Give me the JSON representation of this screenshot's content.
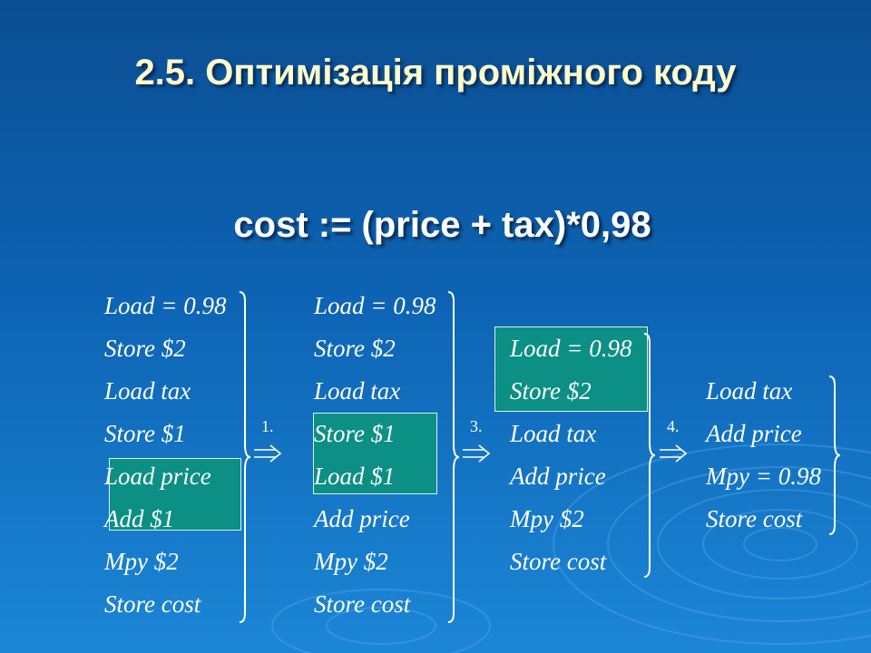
{
  "slide": {
    "title": "2.5. Оптимізація проміжного коду",
    "formula": "cost := (price + tax)*0,98"
  },
  "columns": [
    {
      "lines": [
        "Load = 0.98",
        "Store $2",
        "Load tax",
        "Store $1",
        "Load price",
        "Add $1",
        "Mpy $2",
        "Store cost"
      ]
    },
    {
      "lines": [
        "Load = 0.98",
        "Store $2",
        "Load tax",
        "Store $1",
        "Load $1",
        "Add price",
        "Mpy $2",
        "Store cost"
      ]
    },
    {
      "lines": [
        "Load = 0.98",
        "Store $2",
        "Load tax",
        "Add price",
        "Mpy $2",
        "Store cost"
      ]
    },
    {
      "lines": [
        "Load tax",
        "Add price",
        "Mpy = 0.98",
        "Store cost"
      ]
    }
  ],
  "steps": [
    "1.",
    "3.",
    "4."
  ],
  "colors": {
    "highlight": "#0c8f84",
    "title": "#ffffcc",
    "text": "#ffffff"
  }
}
